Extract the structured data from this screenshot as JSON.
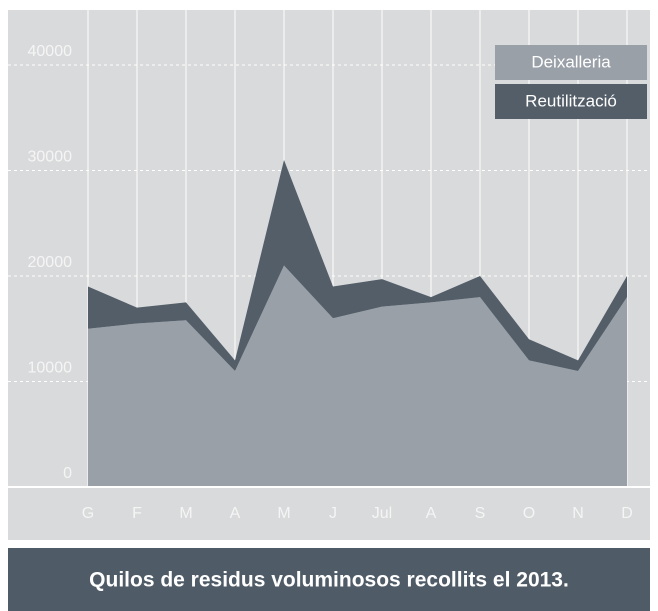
{
  "chart_data": {
    "type": "stacked_area",
    "title": "Quilos de residus voluminosos recollits el 2013.",
    "categories": [
      "G",
      "F",
      "M",
      "A",
      "M",
      "J",
      "Jul",
      "A",
      "S",
      "O",
      "N",
      "D"
    ],
    "series": [
      {
        "name": "Deixalleria",
        "color": "#9aa0a8",
        "values": [
          15000,
          15500,
          15800,
          11000,
          21000,
          16000,
          17100,
          17500,
          18000,
          12000,
          11000,
          18000
        ]
      },
      {
        "name": "Reutilització",
        "color": "#535e69",
        "values": [
          4000,
          1500,
          1700,
          1000,
          10000,
          3000,
          2600,
          500,
          2000,
          2000,
          1000,
          2000
        ]
      }
    ],
    "ylim": [
      0,
      40000
    ],
    "yticks": [
      0,
      10000,
      20000,
      30000,
      40000
    ],
    "grid": true,
    "legend": "top-right"
  }
}
